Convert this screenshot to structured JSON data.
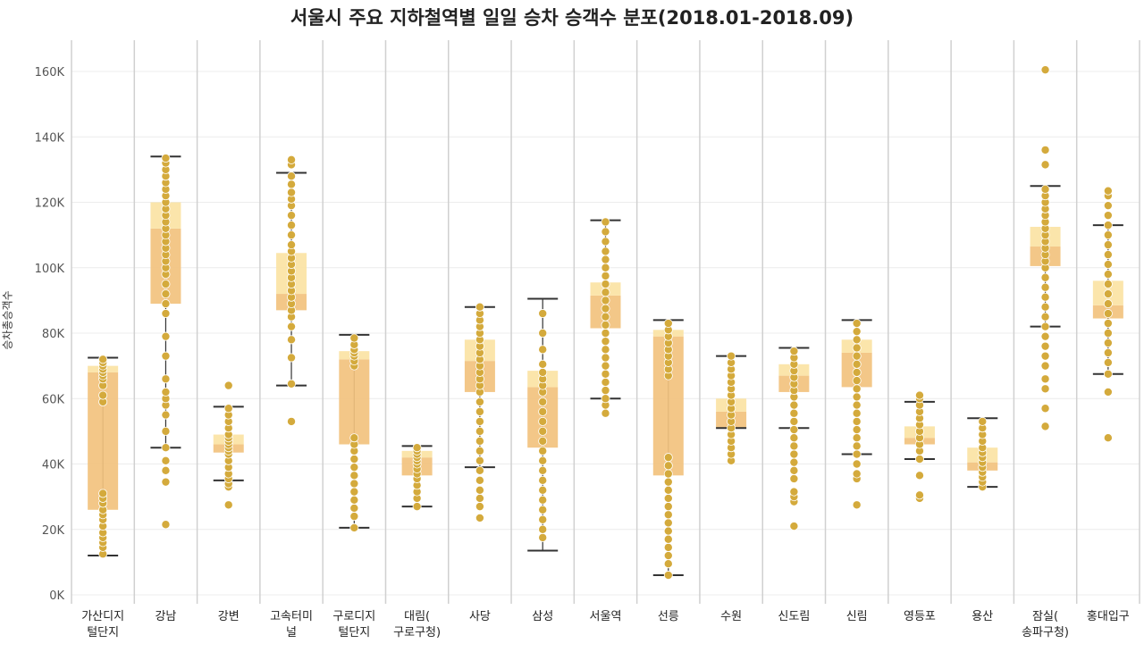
{
  "chart_data": {
    "type": "box",
    "title": "서울시 주요 지하철역별 일일 승차 승객수 분포(2018.01-2018.09)",
    "ylabel": "승차총승객수",
    "ylim": [
      0,
      170000
    ],
    "yticks": [
      0,
      20000,
      40000,
      60000,
      80000,
      100000,
      120000,
      140000,
      160000
    ],
    "ytick_labels": [
      "0K",
      "20K",
      "40K",
      "60K",
      "80K",
      "100K",
      "120K",
      "140K",
      "160K"
    ],
    "grid": true,
    "colors": {
      "box_lower": "#f2c27e",
      "box_upper": "#fbe4a6",
      "point": "#d4aa3c",
      "whisker": "#333333",
      "divider": "#d0d0d0"
    },
    "categories": [
      {
        "label": [
          "가산디지",
          "털단지"
        ],
        "whisker_low": 12000,
        "q1": 26000,
        "median": 68000,
        "q3": 70000,
        "whisker_high": 72500,
        "points": [
          12500,
          14500,
          16000,
          17500,
          19000,
          21000,
          23000,
          24500,
          26000,
          28000,
          29500,
          31000,
          59000,
          61000,
          64000,
          66000,
          67000,
          68000,
          69000,
          70000,
          71000,
          72000
        ]
      },
      {
        "label": [
          "강남"
        ],
        "whisker_low": 45000,
        "q1": 89000,
        "median": 112000,
        "q3": 120000,
        "whisker_high": 134000,
        "points": [
          21500,
          34500,
          38000,
          41000,
          45000,
          50000,
          55000,
          58000,
          60000,
          62000,
          66000,
          73000,
          79000,
          86000,
          89000,
          92000,
          95000,
          98000,
          100000,
          102000,
          104000,
          106000,
          108000,
          110000,
          112000,
          114000,
          116000,
          118000,
          120000,
          122000,
          124000,
          126000,
          128000,
          130000,
          132000,
          133500
        ]
      },
      {
        "label": [
          "강변"
        ],
        "whisker_low": 35000,
        "q1": 43500,
        "median": 46000,
        "q3": 49000,
        "whisker_high": 57500,
        "points": [
          27500,
          33000,
          34000,
          35500,
          37000,
          39000,
          41000,
          43000,
          44000,
          45000,
          46000,
          47000,
          48000,
          49000,
          51000,
          53000,
          55000,
          57000,
          64000
        ]
      },
      {
        "label": [
          "고속터미",
          "널"
        ],
        "whisker_low": 64000,
        "q1": 87000,
        "median": 92000,
        "q3": 104500,
        "whisker_high": 129000,
        "points": [
          53000,
          64500,
          72500,
          78000,
          82000,
          85000,
          87000,
          89000,
          91000,
          93000,
          95000,
          97000,
          99000,
          101000,
          103000,
          105000,
          107000,
          110000,
          113000,
          116000,
          119000,
          121000,
          123000,
          125500,
          128000,
          131500,
          133000
        ]
      },
      {
        "label": [
          "구로디지",
          "털단지"
        ],
        "whisker_low": 20500,
        "q1": 46000,
        "median": 72000,
        "q3": 74500,
        "whisker_high": 79500,
        "points": [
          20500,
          24000,
          26500,
          29000,
          31500,
          34000,
          36500,
          39000,
          41500,
          44000,
          46000,
          48000,
          70000,
          71500,
          73000,
          74000,
          75000,
          76500,
          78500
        ]
      },
      {
        "label": [
          "대림(",
          "구로구청)"
        ],
        "whisker_low": 27000,
        "q1": 36500,
        "median": 42000,
        "q3": 44000,
        "whisker_high": 45500,
        "points": [
          27000,
          29500,
          31500,
          33500,
          35500,
          37000,
          38500,
          40000,
          41000,
          42000,
          43000,
          44000,
          45000
        ]
      },
      {
        "label": [
          "사당"
        ],
        "whisker_low": 39000,
        "q1": 62000,
        "median": 71500,
        "q3": 78000,
        "whisker_high": 88000,
        "points": [
          23500,
          27000,
          29500,
          32000,
          35000,
          38000,
          41000,
          44000,
          47000,
          50000,
          53000,
          56000,
          59000,
          62000,
          64000,
          66000,
          68000,
          70000,
          72000,
          74000,
          76000,
          78000,
          80000,
          82000,
          84000,
          86000,
          88000
        ]
      },
      {
        "label": [
          "삼성"
        ],
        "whisker_low": 13500,
        "q1": 45000,
        "median": 63500,
        "q3": 68500,
        "whisker_high": 90500,
        "points": [
          17500,
          20000,
          23000,
          26000,
          29000,
          32000,
          35000,
          38000,
          41000,
          44000,
          47000,
          50000,
          53000,
          56000,
          59000,
          62000,
          64000,
          66000,
          68000,
          70500,
          75000,
          80000,
          86000
        ]
      },
      {
        "label": [
          "서울역"
        ],
        "whisker_low": 60000,
        "q1": 81500,
        "median": 91500,
        "q3": 95500,
        "whisker_high": 114500,
        "points": [
          55500,
          58000,
          60000,
          62500,
          65000,
          67500,
          70000,
          72500,
          75000,
          77500,
          80000,
          82500,
          85000,
          87500,
          90000,
          92500,
          95000,
          97500,
          100000,
          102500,
          105000,
          108000,
          111000,
          114000
        ]
      },
      {
        "label": [
          "선릉"
        ],
        "whisker_low": 6000,
        "q1": 36500,
        "median": 79000,
        "q3": 81000,
        "whisker_high": 84000,
        "points": [
          6000,
          9500,
          12000,
          14500,
          17000,
          19500,
          22000,
          24500,
          27000,
          29500,
          32000,
          34500,
          37000,
          39500,
          42000,
          67000,
          69000,
          71000,
          73000,
          75000,
          77000,
          79000,
          81000,
          83000
        ]
      },
      {
        "label": [
          "수원"
        ],
        "whisker_low": 51000,
        "q1": 51000,
        "median": 56000,
        "q3": 60000,
        "whisker_high": 73000,
        "points": [
          41000,
          43000,
          45000,
          47000,
          49000,
          51000,
          53000,
          55000,
          57000,
          59000,
          61000,
          63000,
          65000,
          67000,
          69000,
          71000,
          73000
        ]
      },
      {
        "label": [
          "신도림"
        ],
        "whisker_low": 51000,
        "q1": 62000,
        "median": 67000,
        "q3": 70500,
        "whisker_high": 75500,
        "points": [
          21000,
          28500,
          30000,
          31500,
          35500,
          38000,
          40500,
          43000,
          45500,
          48000,
          50500,
          53000,
          55500,
          58000,
          60500,
          62500,
          64500,
          66500,
          68500,
          70500,
          72500,
          74500
        ]
      },
      {
        "label": [
          "신림"
        ],
        "whisker_low": 43000,
        "q1": 63500,
        "median": 74000,
        "q3": 78000,
        "whisker_high": 84000,
        "points": [
          27500,
          35500,
          37000,
          40000,
          43000,
          45500,
          48000,
          50500,
          53000,
          55500,
          58000,
          60500,
          63000,
          65500,
          68000,
          70500,
          73000,
          75500,
          78000,
          80500,
          83000
        ]
      },
      {
        "label": [
          "영등포"
        ],
        "whisker_low": 41500,
        "q1": 46000,
        "median": 48000,
        "q3": 51500,
        "whisker_high": 59000,
        "points": [
          29500,
          30500,
          36500,
          41500,
          44000,
          46000,
          48000,
          50000,
          52000,
          54000,
          56000,
          58000,
          60000,
          61000
        ]
      },
      {
        "label": [
          "용산"
        ],
        "whisker_low": 33000,
        "q1": 38000,
        "median": 40500,
        "q3": 45000,
        "whisker_high": 54000,
        "points": [
          33000,
          34500,
          36000,
          37500,
          39000,
          40500,
          42000,
          43500,
          45000,
          47000,
          49000,
          51000,
          53000
        ]
      },
      {
        "label": [
          "잠실(",
          "송파구청)"
        ],
        "whisker_low": 82000,
        "q1": 100500,
        "median": 106500,
        "q3": 112500,
        "whisker_high": 125000,
        "points": [
          51500,
          57000,
          63000,
          66000,
          70000,
          73000,
          76000,
          79000,
          82000,
          85000,
          88000,
          91000,
          94000,
          97000,
          100000,
          102000,
          104000,
          106000,
          108000,
          110000,
          112000,
          114000,
          116000,
          118000,
          120000,
          122000,
          124000,
          131500,
          136000,
          160500
        ]
      },
      {
        "label": [
          "홍대입구"
        ],
        "whisker_low": 67500,
        "q1": 84500,
        "median": 88500,
        "q3": 96000,
        "whisker_high": 113000,
        "points": [
          48000,
          62000,
          67500,
          71000,
          74000,
          77000,
          80000,
          83000,
          86000,
          89000,
          92000,
          95000,
          98000,
          101000,
          104000,
          107000,
          110000,
          113000,
          116000,
          119000,
          122000,
          123500
        ]
      }
    ]
  }
}
